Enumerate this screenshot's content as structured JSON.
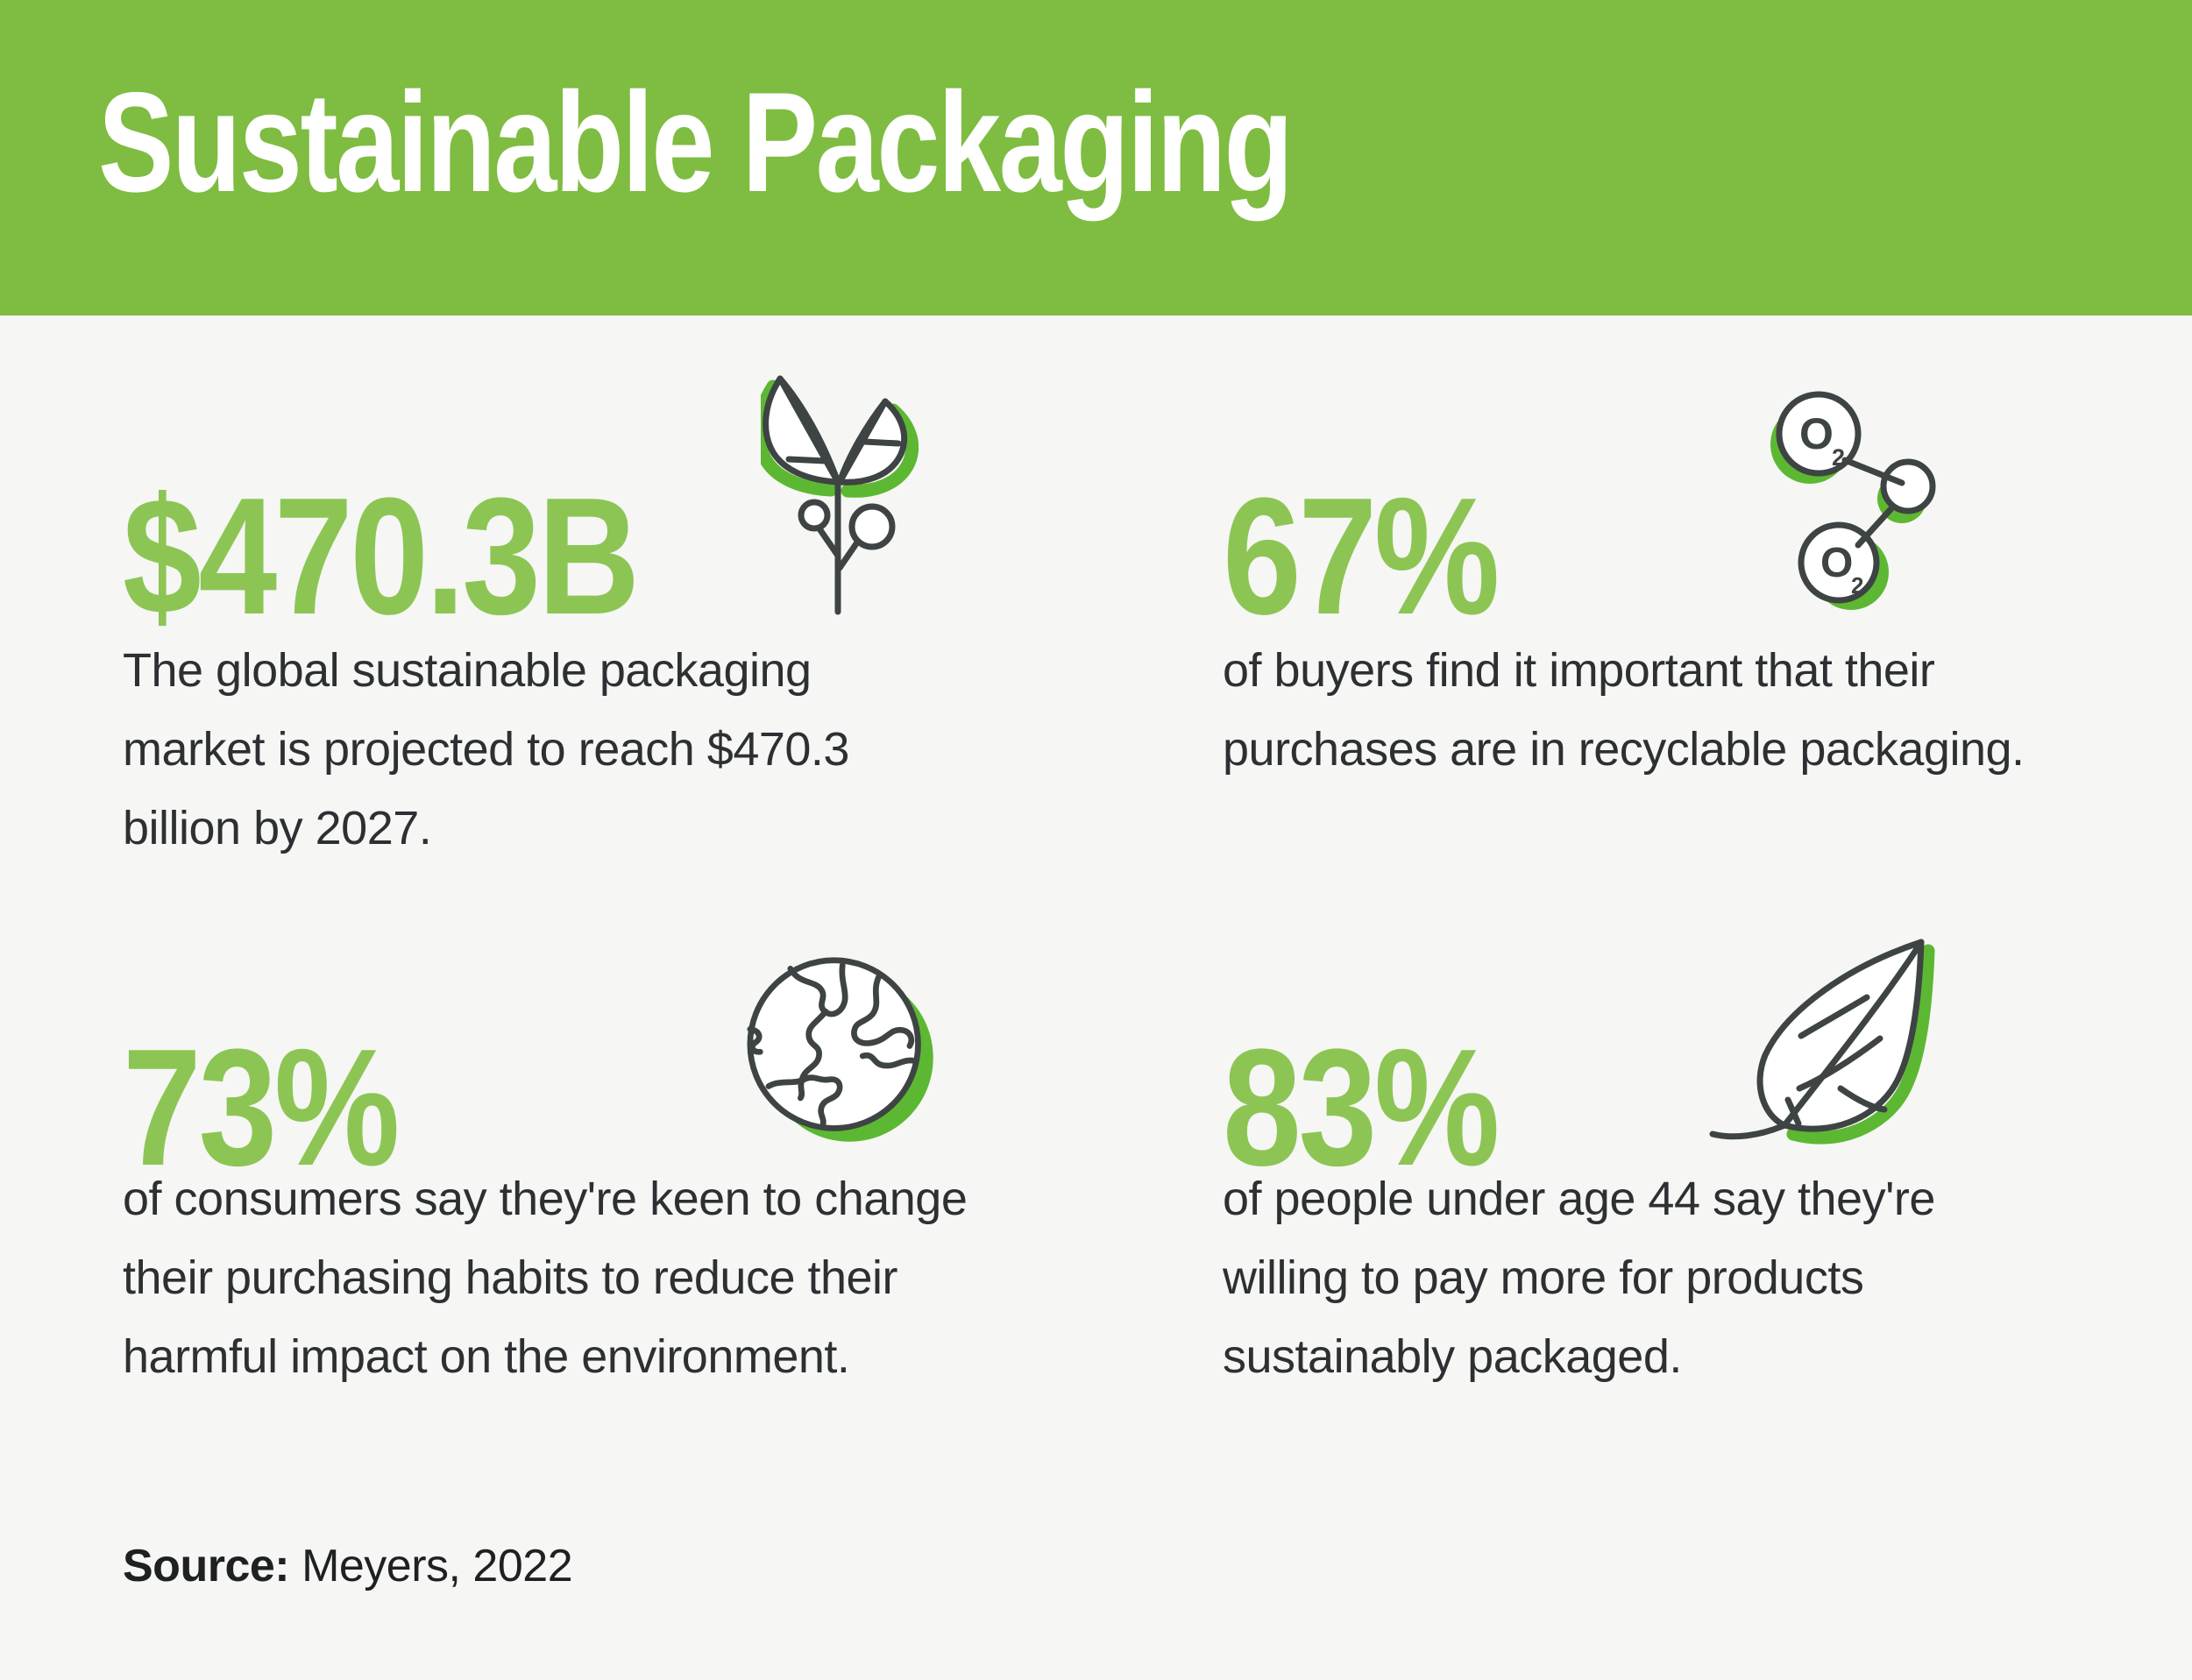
{
  "page": {
    "background": "#F6F6F4"
  },
  "header": {
    "title": "Sustainable Packaging",
    "background": "#7FBC42",
    "text_color": "#FFFFFF"
  },
  "stats": [
    {
      "value": "$470.3B",
      "description_lines": [
        "The global sustainable packaging",
        "market is projected to reach $470.3",
        "billion by 2027."
      ],
      "icon": "plant-sprout-icon"
    },
    {
      "value": "67%",
      "description_lines": [
        "of buyers find it important that their",
        "purchases are in recyclable packaging."
      ],
      "icon": "oxygen-molecules-icon"
    },
    {
      "value": "73%",
      "description_lines": [
        "of consumers say they're keen to change",
        "their purchasing habits to reduce their",
        "harmful impact on the environment."
      ],
      "icon": "earth-icon"
    },
    {
      "value": "83%",
      "description_lines": [
        "of people under age 44 say they're",
        "willing to pay more for products",
        "sustainably packaged."
      ],
      "icon": "leaf-icon"
    }
  ],
  "molecule_labels": {
    "o": "O",
    "sub": "2"
  },
  "source": {
    "label": "Source:",
    "text": "Meyers, 2022"
  },
  "colors": {
    "header_green": "#7FBC42",
    "stat_green": "#8CC554",
    "accent_green": "#5CB832",
    "icon_ink": "#3E4343",
    "body_text": "#2D3032",
    "background": "#F6F6F4"
  }
}
